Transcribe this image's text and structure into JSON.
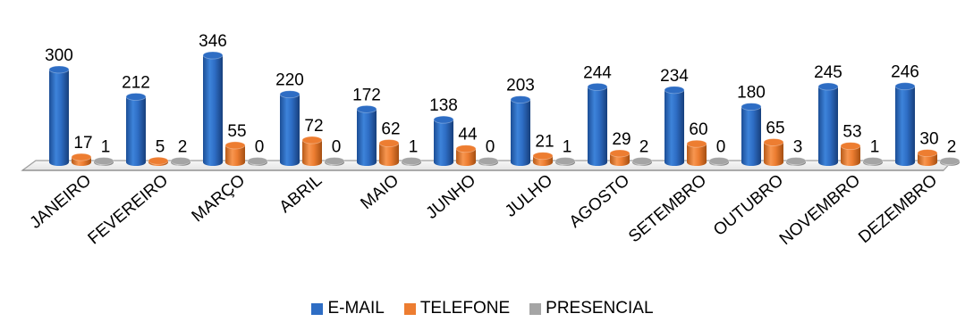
{
  "chart_data": {
    "type": "bar",
    "title": "",
    "xlabel": "",
    "ylabel": "",
    "categories": [
      "JANEIRO",
      "FEVEREIRO",
      "MARÇO",
      "ABRIL",
      "MAIO",
      "JUNHO",
      "JULHO",
      "AGOSTO",
      "SETEMBRO",
      "OUTUBRO",
      "NOVEMBRO",
      "DEZEMBRO"
    ],
    "series": [
      {
        "name": "E-MAIL",
        "color": "#2E6DC4",
        "values": [
          300,
          212,
          346,
          220,
          172,
          138,
          203,
          244,
          234,
          180,
          245,
          246
        ]
      },
      {
        "name": "TELEFONE",
        "color": "#ED7D31",
        "values": [
          17,
          5,
          55,
          72,
          62,
          44,
          21,
          29,
          60,
          65,
          53,
          30
        ]
      },
      {
        "name": "PRESENCIAL",
        "color": "#A5A5A5",
        "values": [
          1,
          2,
          0,
          0,
          1,
          0,
          1,
          2,
          0,
          3,
          1,
          2
        ]
      }
    ],
    "ylim": [
      0,
      346
    ],
    "grid": false,
    "legend_position": "bottom",
    "data_labels": true,
    "style": "3d-cylinder"
  }
}
